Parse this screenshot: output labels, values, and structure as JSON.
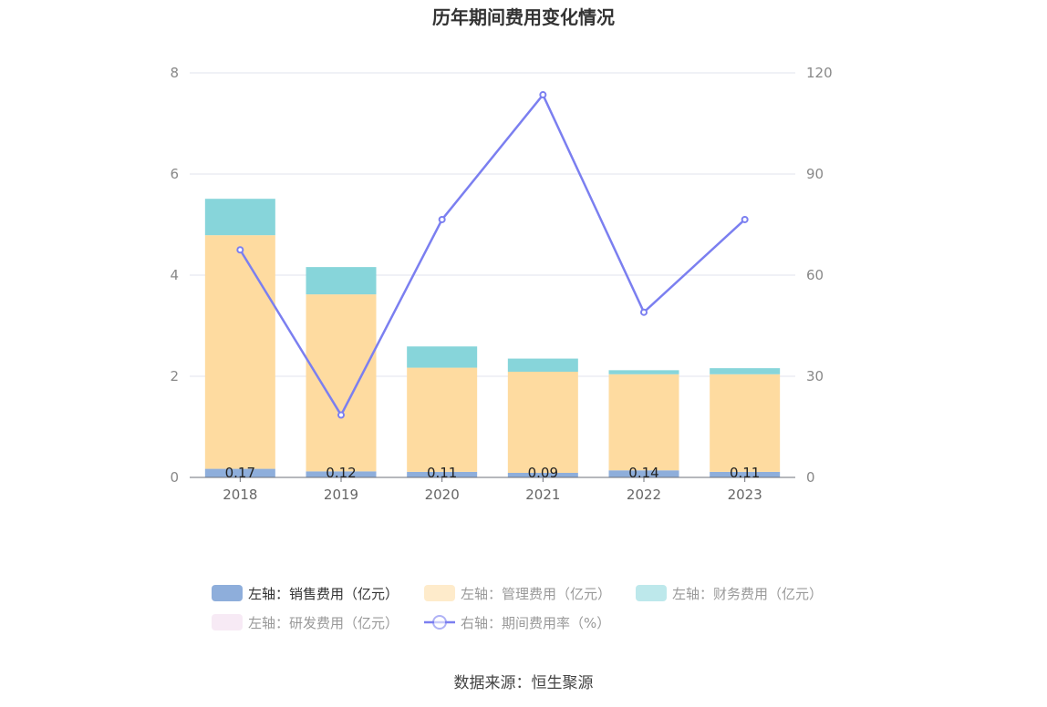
{
  "chart_data": {
    "type": "bar",
    "title": "历年期间费用变化情况",
    "categories": [
      "2018",
      "2019",
      "2020",
      "2021",
      "2022",
      "2023"
    ],
    "stacked": true,
    "y_left": {
      "ticks": [
        "0",
        "2",
        "4",
        "6",
        "8"
      ],
      "ylim": [
        0,
        8
      ]
    },
    "y_right": {
      "ticks": [
        "0",
        "30",
        "60",
        "90",
        "120"
      ],
      "ylim": [
        0,
        120
      ]
    },
    "grid": true,
    "legend_position": "bottom",
    "series": [
      {
        "name": "左轴：销售费用（亿元）",
        "axis": "left",
        "type": "bar",
        "color": "#8eaedb",
        "values": [
          0.17,
          0.12,
          0.11,
          0.09,
          0.14,
          0.11
        ],
        "labels": [
          "0.17",
          "0.12",
          "0.11",
          "0.09",
          "0.14",
          "0.11"
        ]
      },
      {
        "name": "左轴：管理费用（亿元）",
        "axis": "left",
        "type": "bar",
        "color": "#fedba0",
        "values": [
          4.62,
          3.5,
          2.06,
          2.0,
          1.9,
          1.93
        ]
      },
      {
        "name": "左轴：财务费用（亿元）",
        "axis": "left",
        "type": "bar",
        "color": "#87d5da",
        "values": [
          0.72,
          0.54,
          0.42,
          0.26,
          0.08,
          0.12
        ]
      },
      {
        "name": "左轴：研发费用（亿元）",
        "axis": "left",
        "type": "bar",
        "color": "#f0d8ec",
        "values": [
          0,
          0,
          0,
          0,
          0,
          0
        ]
      },
      {
        "name": "右轴：期间费用率（%）",
        "axis": "right",
        "type": "line",
        "color": "#7b7ff0",
        "values": [
          67.5,
          18.5,
          76.5,
          113.5,
          49,
          76.5
        ]
      }
    ]
  },
  "source": "数据来源：恒生聚源"
}
